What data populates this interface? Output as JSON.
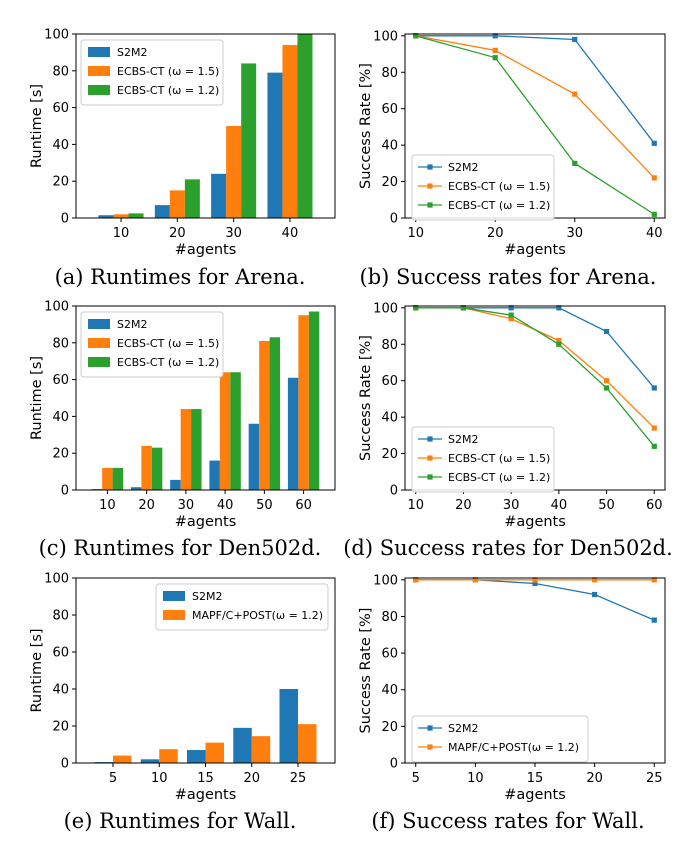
{
  "chart_data": [
    {
      "id": "a",
      "type": "bar",
      "caption": "(a) Runtimes for Arena.",
      "categories": [
        "10",
        "20",
        "30",
        "40"
      ],
      "series": [
        {
          "name": "S2M2",
          "values": [
            1.5,
            7,
            24,
            79
          ]
        },
        {
          "name": "ECBS-CT (ω = 1.5)",
          "values": [
            2,
            15,
            50,
            94
          ]
        },
        {
          "name": "ECBS-CT (ω = 1.2)",
          "values": [
            2.5,
            21,
            84,
            100
          ]
        }
      ],
      "xlabel": "#agents",
      "ylabel": "Runtime [s]",
      "ylim": [
        0,
        100
      ],
      "yticks": [
        0,
        20,
        40,
        60,
        80,
        100
      ],
      "legend": "top-left",
      "grid": false
    },
    {
      "id": "b",
      "type": "line",
      "caption": "(b) Success rates for Arena.",
      "x": [
        10,
        20,
        30,
        40
      ],
      "series": [
        {
          "name": "S2M2",
          "values": [
            100,
            100,
            98,
            41
          ]
        },
        {
          "name": "ECBS-CT (ω = 1.5)",
          "values": [
            100,
            92,
            68,
            22
          ]
        },
        {
          "name": "ECBS-CT (ω = 1.2)",
          "values": [
            100,
            88,
            30,
            2
          ]
        }
      ],
      "xlabel": "#agents",
      "ylabel": "Success Rate [%]",
      "xticks": [
        10,
        20,
        30,
        40
      ],
      "yticks": [
        0,
        20,
        40,
        60,
        80,
        100
      ],
      "ylim": [
        0,
        101
      ],
      "legend": "bottom-left",
      "grid": false
    },
    {
      "id": "c",
      "type": "bar",
      "caption": "(c) Runtimes for Den502d.",
      "categories": [
        "10",
        "20",
        "30",
        "40",
        "50",
        "60"
      ],
      "series": [
        {
          "name": "S2M2",
          "values": [
            0.5,
            1.5,
            5.5,
            16,
            36,
            61
          ]
        },
        {
          "name": "ECBS-CT (ω = 1.5)",
          "values": [
            12,
            24,
            44,
            64,
            81,
            95
          ]
        },
        {
          "name": "ECBS-CT (ω = 1.2)",
          "values": [
            12,
            23,
            44,
            64,
            83,
            97
          ]
        }
      ],
      "xlabel": "#agents",
      "ylabel": "Runtime [s]",
      "ylim": [
        0,
        100
      ],
      "yticks": [
        0,
        20,
        40,
        60,
        80,
        100
      ],
      "legend": "top-left",
      "grid": false
    },
    {
      "id": "d",
      "type": "line",
      "caption": "(d) Success rates for Den502d.",
      "x": [
        10,
        20,
        30,
        40,
        50,
        60
      ],
      "series": [
        {
          "name": "S2M2",
          "values": [
            100,
            100,
            100,
            100,
            87,
            56
          ]
        },
        {
          "name": "ECBS-CT (ω = 1.5)",
          "values": [
            100,
            100,
            94,
            82,
            60,
            34
          ]
        },
        {
          "name": "ECBS-CT (ω = 1.2)",
          "values": [
            100,
            100,
            96,
            80,
            56,
            24
          ]
        }
      ],
      "xlabel": "#agents",
      "ylabel": "Success Rate [%]",
      "xticks": [
        10,
        20,
        30,
        40,
        50,
        60
      ],
      "yticks": [
        0,
        20,
        40,
        60,
        80,
        100
      ],
      "ylim": [
        0,
        101
      ],
      "legend": "bottom-left",
      "grid": false
    },
    {
      "id": "e",
      "type": "bar",
      "caption": "(e) Runtimes for Wall.",
      "categories": [
        "5",
        "10",
        "15",
        "20",
        "25"
      ],
      "series": [
        {
          "name": "S2M2",
          "values": [
            0.5,
            2,
            7,
            19,
            40
          ]
        },
        {
          "name": "MAPF/C+POST(ω = 1.2)",
          "values": [
            4,
            7.5,
            11,
            14.5,
            21
          ]
        }
      ],
      "xlabel": "#agents",
      "ylabel": "Runtime [s]",
      "ylim": [
        0,
        100
      ],
      "yticks": [
        0,
        20,
        40,
        60,
        80,
        100
      ],
      "legend": "top-right",
      "grid": false
    },
    {
      "id": "f",
      "type": "line",
      "caption": "(f) Success rates for Wall.",
      "x": [
        5,
        10,
        15,
        20,
        25
      ],
      "series": [
        {
          "name": "S2M2",
          "values": [
            100,
            100,
            98,
            92,
            78
          ]
        },
        {
          "name": "MAPF/C+POST(ω = 1.2)",
          "values": [
            100,
            100,
            100,
            100,
            100
          ]
        }
      ],
      "xlabel": "#agents",
      "ylabel": "Success Rate [%]",
      "xticks": [
        5,
        10,
        15,
        20,
        25
      ],
      "yticks": [
        0,
        20,
        40,
        60,
        80,
        100
      ],
      "ylim": [
        0,
        101
      ],
      "legend": "bottom-left",
      "grid": false
    }
  ],
  "colors": {
    "blue": "#1f77b4",
    "orange": "#ff7f0e",
    "green": "#2ca02c"
  }
}
